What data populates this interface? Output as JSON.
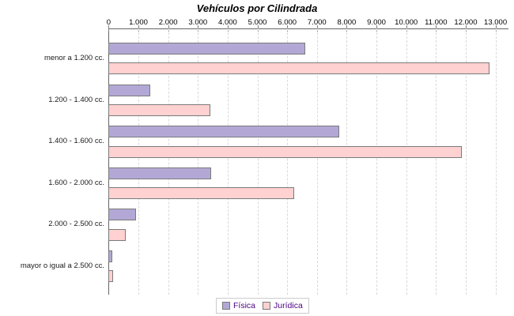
{
  "chart_data": {
    "type": "bar",
    "orientation": "horizontal",
    "title": "Vehículos por Cilindrada",
    "categories": [
      "menor a 1.200 cc.",
      "1.200 - 1.400 cc.",
      "1.400 - 1.600 cc.",
      "1.600 - 2.000 cc.",
      "2.000 - 2.500 cc.",
      "mayor o igual a 2.500 cc."
    ],
    "series": [
      {
        "name": "Física",
        "color": "#b3a8d5",
        "border_color": "#7a7a7a",
        "values": [
          6600,
          1390,
          7760,
          3450,
          930,
          130
        ]
      },
      {
        "name": "Jurídica",
        "color": "#ffd1d1",
        "border_color": "#7a7a7a",
        "values": [
          12800,
          3410,
          11870,
          6240,
          575,
          160
        ]
      }
    ],
    "x_axis": {
      "min": 0,
      "max": 13450,
      "tick_interval": 1000,
      "tick_labels": [
        "0",
        "1.000",
        "2.000",
        "3.000",
        "4.000",
        "5.000",
        "6.000",
        "7.000",
        "8.000",
        "9.000",
        "10.000",
        "11.000",
        "12.000",
        "13.000"
      ]
    },
    "y_axis": {
      "label": ""
    },
    "legend": {
      "position": "bottom"
    },
    "grid": "vertical-dashed",
    "colors": {
      "axis": "#666666",
      "tick": "#808080",
      "gridline": "#d9d9d9",
      "legend_text": "#4b0082",
      "legend_border": "#cccccc",
      "title_text": "#000000"
    }
  }
}
